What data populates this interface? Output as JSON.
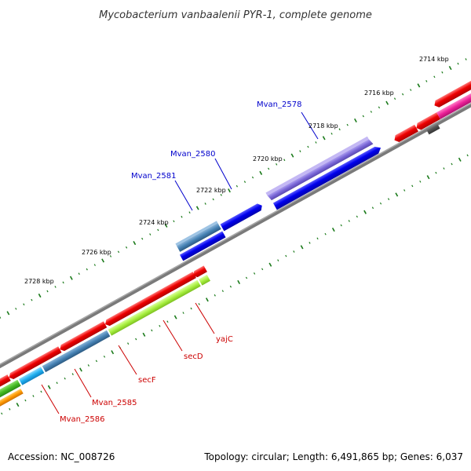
{
  "title": "Mycobacterium vanbaalenii PYR-1, complete genome",
  "footer": {
    "accession": "Accession: NC_008726",
    "summary": "Topology: circular; Length: 6,491,865 bp; Genes: 6,037"
  },
  "ticks": [
    "2714 kbp",
    "2716 kbp",
    "2718 kbp",
    "2720 kbp",
    "2722 kbp",
    "2724 kbp",
    "2726 kbp",
    "2728 kbp"
  ],
  "genes_upper": [
    "Mvan_2578",
    "Mvan_2580",
    "Mvan_2581"
  ],
  "genes_lower": [
    "yajC",
    "secD",
    "secF",
    "Mvan_2585",
    "Mvan_2586"
  ],
  "colors": {
    "backbone": "#808080",
    "tick": "#1a7a1a",
    "label_blue": "#0000cc",
    "label_red": "#cc0000",
    "cds_blue": "#0000ee",
    "cds_purple": "#7b68d8",
    "cds_steel": "#4682b4",
    "cds_red": "#ee0000",
    "cds_lime": "#a8f040",
    "cds_cyan": "#20b0f0",
    "cds_green": "#44bb22",
    "cds_orange": "#ff9900",
    "cds_magenta": "#ee2299",
    "cds_gray": "#555555"
  }
}
